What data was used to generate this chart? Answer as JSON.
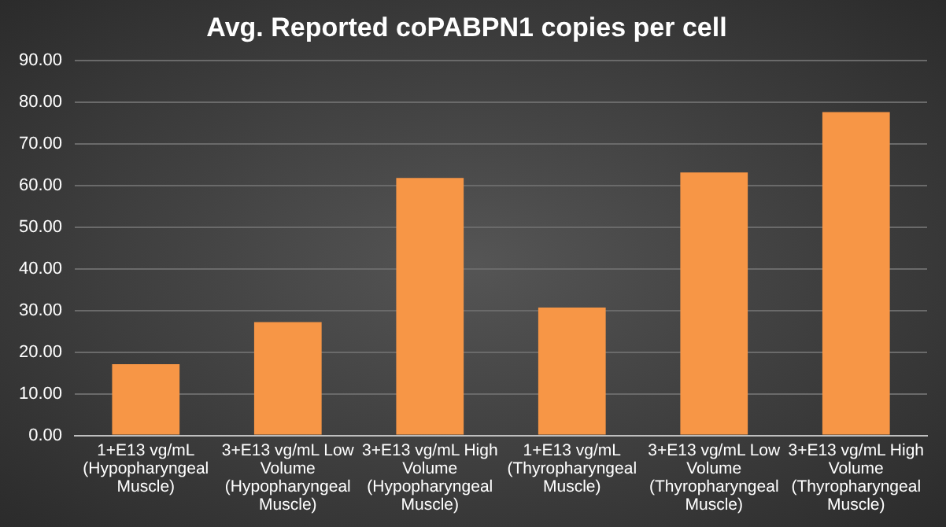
{
  "chart_data": {
    "type": "bar",
    "title": "Avg. Reported coPABPN1 copies per cell",
    "categories": [
      "1+E13 vg/mL (Hypopharyngeal Muscle)",
      "3+E13 vg/mL Low Volume (Hypopharyngeal Muscle)",
      "3+E13 vg/mL High Volume (Hypopharyngeal Muscle)",
      "1+E13 vg/mL (Thyropharyngeal Muscle)",
      "3+E13 vg/mL Low Volume (Thyropharyngeal Muscle)",
      "3+E13 vg/mL High Volume (Thyropharyngeal Muscle)"
    ],
    "values": [
      17.1,
      27.2,
      61.8,
      30.7,
      63.1,
      77.6
    ],
    "color": "#f79646",
    "ylim": [
      0,
      90
    ],
    "yticks": [
      {
        "value": 0,
        "label": "0.00"
      },
      {
        "value": 10,
        "label": "10.00"
      },
      {
        "value": 20,
        "label": "20.00"
      },
      {
        "value": 30,
        "label": "30.00"
      },
      {
        "value": 40,
        "label": "40.00"
      },
      {
        "value": 50,
        "label": "50.00"
      },
      {
        "value": 60,
        "label": "60.00"
      },
      {
        "value": 70,
        "label": "70.00"
      },
      {
        "value": 80,
        "label": "80.00"
      },
      {
        "value": 90,
        "label": "90.00"
      }
    ],
    "grid": "y",
    "legend": false
  }
}
